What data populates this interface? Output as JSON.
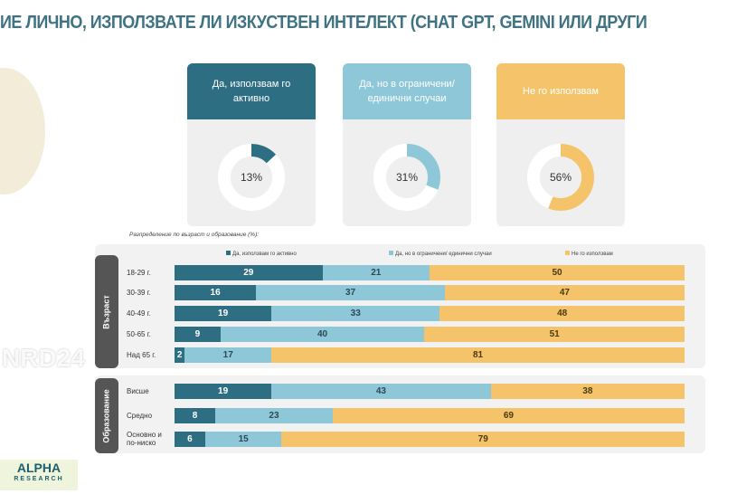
{
  "title": "ИЕ ЛИЧНО, ИЗПОЛЗВАТЕ ЛИ ИЗКУСТВЕН ИНТЕЛЕКТ (CHAT GPT, GEMINI ИЛИ ДРУГИ",
  "watermark": "NRD24",
  "logo": {
    "name": "ALPHA",
    "sub": "RESEARCH"
  },
  "colors": {
    "active": "#2e6e82",
    "limited": "#8ec7d8",
    "none": "#f5c46a"
  },
  "chart_data": [
    {
      "type": "pie",
      "variant": "donut",
      "categories": [
        "Да, използвам го активно",
        "Да, но в ограничени/ единични случаи",
        "Не го използвам"
      ],
      "values": [
        13,
        31,
        56
      ],
      "labels": [
        "13%",
        "31%",
        "56%"
      ]
    },
    {
      "type": "bar",
      "orientation": "horizontal",
      "stacked": true,
      "subtitle": "Разпределение по възраст и образование (%):",
      "groups": [
        {
          "name": "Възраст",
          "categories": [
            "18-29 г.",
            "30-39 г.",
            "40-49 г.",
            "50-65 г.",
            "Над 65 г."
          ]
        },
        {
          "name": "Образование",
          "categories": [
            "Висше",
            "Средно",
            "Основно и по-ниско"
          ]
        }
      ],
      "categories": [
        "18-29 г.",
        "30-39 г.",
        "40-49 г.",
        "50-65 г.",
        "Над 65 г.",
        "Висше",
        "Средно",
        "Основно и по-ниско"
      ],
      "series": [
        {
          "name": "Да, използвам го активно",
          "values": [
            29,
            16,
            19,
            9,
            2,
            19,
            8,
            6
          ]
        },
        {
          "name": "Да, но в ограничени/ единични случаи",
          "values": [
            21,
            37,
            33,
            40,
            17,
            43,
            23,
            15
          ]
        },
        {
          "name": "Не го използвам",
          "values": [
            50,
            47,
            48,
            51,
            81,
            38,
            69,
            79
          ]
        }
      ],
      "legend": "top",
      "xlim": [
        0,
        100
      ]
    }
  ]
}
